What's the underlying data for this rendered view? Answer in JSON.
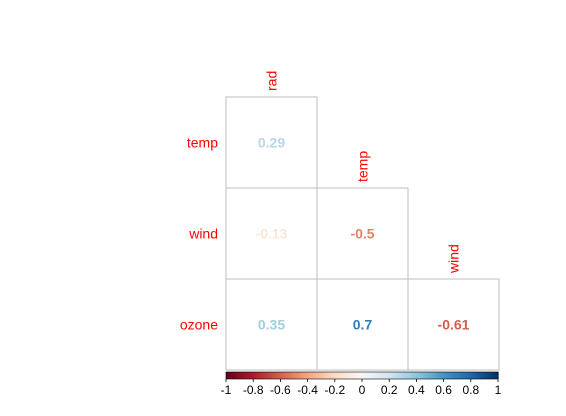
{
  "chart_data": {
    "type": "heatmap",
    "title": "",
    "layout": "lower-triangle correlation matrix",
    "columns": [
      "rad",
      "temp",
      "wind"
    ],
    "rows": [
      "temp",
      "wind",
      "ozone"
    ],
    "cells": [
      {
        "row": "temp",
        "col": "rad",
        "value": 0.29,
        "label": "0.29"
      },
      {
        "row": "wind",
        "col": "rad",
        "value": -0.13,
        "label": "-0.13"
      },
      {
        "row": "wind",
        "col": "temp",
        "value": -0.5,
        "label": "-0.5"
      },
      {
        "row": "ozone",
        "col": "rad",
        "value": 0.35,
        "label": "0.35"
      },
      {
        "row": "ozone",
        "col": "temp",
        "value": 0.7,
        "label": "0.7"
      },
      {
        "row": "ozone",
        "col": "wind",
        "value": -0.61,
        "label": "-0.61"
      }
    ],
    "colorbar": {
      "range": [
        -1,
        1
      ],
      "ticks": [
        "-1",
        "-0.8",
        "-0.6",
        "-0.4",
        "-0.2",
        "0",
        "0.2",
        "0.4",
        "0.6",
        "0.8",
        "1"
      ],
      "placement": "bottom"
    },
    "colors": {
      "negative_end": "#67001f",
      "neutral": "#f7f7f7",
      "positive_end": "#053061",
      "label_color": "#ff0000",
      "cell_border": "#bebebe"
    }
  }
}
